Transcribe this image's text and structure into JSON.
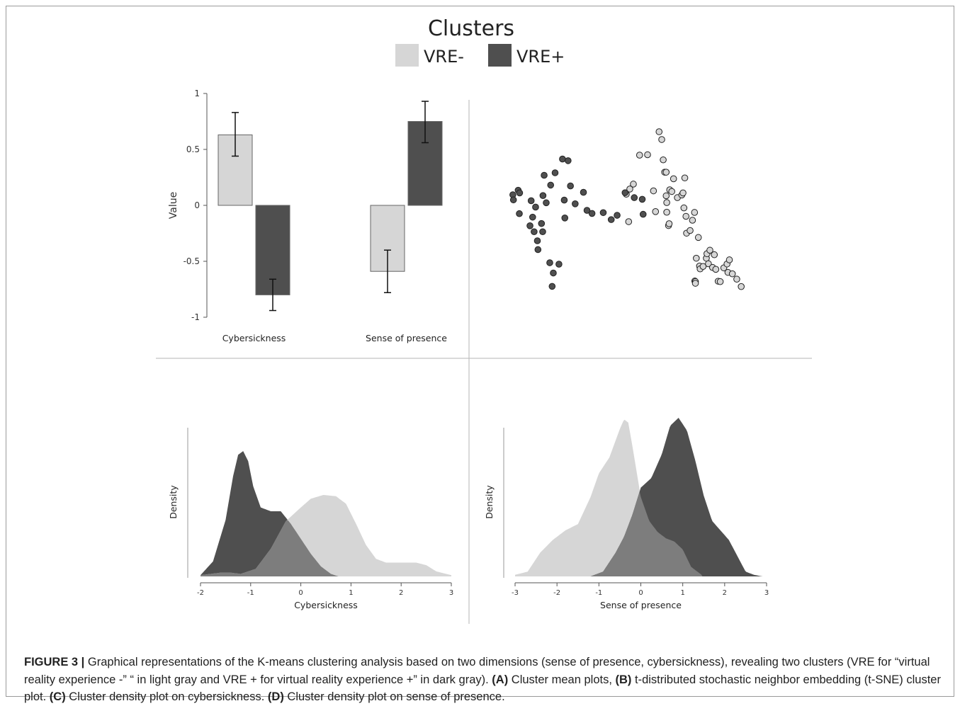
{
  "figure": {
    "legend_title": "Clusters",
    "colors": {
      "vre_minus": "#d6d6d6",
      "vre_plus": "#4f4f4f",
      "overlap": "#7d7d7d",
      "point_stroke": "#222222",
      "axis": "#555555"
    }
  },
  "chart_data": [
    {
      "id": "A",
      "type": "bar",
      "categories": [
        "Cybersickness",
        "Sense of presence"
      ],
      "series": [
        {
          "name": "VRE-",
          "values": [
            0.63,
            -0.59
          ],
          "error_low": [
            0.44,
            -0.78
          ],
          "error_high": [
            0.83,
            -0.4
          ]
        },
        {
          "name": "VRE+",
          "values": [
            -0.8,
            0.75
          ],
          "error_low": [
            -0.94,
            0.56
          ],
          "error_high": [
            -0.66,
            0.93
          ]
        }
      ],
      "ylabel": "Value",
      "ylim": [
        -1,
        1
      ],
      "yticks": [
        1,
        0.5,
        0,
        -0.5,
        -1
      ],
      "ytick_labels": [
        "1",
        "0.5",
        "0",
        "-0.5",
        "-1"
      ],
      "legend_placement": "top-center"
    },
    {
      "id": "B",
      "type": "scatter",
      "axes_visible": false,
      "xlim": [
        0,
        100
      ],
      "ylim": [
        0,
        100
      ],
      "series": [
        {
          "name": "VRE-",
          "points": [
            [
              44.2,
              49.3
            ],
            [
              43.4,
              62.7
            ],
            [
              44.6,
              65.2
            ],
            [
              45.8,
              67.6
            ],
            [
              47.9,
              81.7
            ],
            [
              50.6,
              81.9
            ],
            [
              52.6,
              64.3
            ],
            [
              53.3,
              54.2
            ],
            [
              54.5,
              93.1
            ],
            [
              55.4,
              89.3
            ],
            [
              55.9,
              79.4
            ],
            [
              56.4,
              73.4
            ],
            [
              56.9,
              73.4
            ],
            [
              56.9,
              61.9
            ],
            [
              57.1,
              58.6
            ],
            [
              57.1,
              53.9
            ],
            [
              57.7,
              47.4
            ],
            [
              57.9,
              48.3
            ],
            [
              58.1,
              64.8
            ],
            [
              58.8,
              64.0
            ],
            [
              59.4,
              70.2
            ],
            [
              60.7,
              61.0
            ],
            [
              62.2,
              62.3
            ],
            [
              62.6,
              63.3
            ],
            [
              62.9,
              56.0
            ],
            [
              63.2,
              70.6
            ],
            [
              63.6,
              51.9
            ],
            [
              63.8,
              43.7
            ],
            [
              65.0,
              45.0
            ],
            [
              65.8,
              50.0
            ],
            [
              66.5,
              53.8
            ],
            [
              66.6,
              20.4
            ],
            [
              66.8,
              20.1
            ],
            [
              66.8,
              19.3
            ],
            [
              67.1,
              31.5
            ],
            [
              67.8,
              41.6
            ],
            [
              68.2,
              27.7
            ],
            [
              68.4,
              26.3
            ],
            [
              69.4,
              27.5
            ],
            [
              70.5,
              31.5
            ],
            [
              70.7,
              33.7
            ],
            [
              71.2,
              28.8
            ],
            [
              71.7,
              35.4
            ],
            [
              72.6,
              27.0
            ],
            [
              73.2,
              33.2
            ],
            [
              73.7,
              26.1
            ],
            [
              74.5,
              20.3
            ],
            [
              75.2,
              20.1
            ],
            [
              76.4,
              26.8
            ],
            [
              77.5,
              28.7
            ],
            [
              77.8,
              24.6
            ],
            [
              78.3,
              30.7
            ],
            [
              79.3,
              23.9
            ],
            [
              80.8,
              21.3
            ],
            [
              82.3,
              17.7
            ]
          ]
        },
        {
          "name": "VRE+",
          "points": [
            [
              5.0,
              62.4
            ],
            [
              5.2,
              59.9
            ],
            [
              6.8,
              64.6
            ],
            [
              7.2,
              53.2
            ],
            [
              7.3,
              63.3
            ],
            [
              10.8,
              47.3
            ],
            [
              11.2,
              59.5
            ],
            [
              11.7,
              51.5
            ],
            [
              12.2,
              44.4
            ],
            [
              12.7,
              56.4
            ],
            [
              13.3,
              40.0
            ],
            [
              13.5,
              35.7
            ],
            [
              14.7,
              48.4
            ],
            [
              15.1,
              44.4
            ],
            [
              15.2,
              62.0
            ],
            [
              15.6,
              71.9
            ],
            [
              16.3,
              58.5
            ],
            [
              17.5,
              29.3
            ],
            [
              17.8,
              67.1
            ],
            [
              18.3,
              17.8
            ],
            [
              18.7,
              24.3
            ],
            [
              19.3,
              73.1
            ],
            [
              20.6,
              28.6
            ],
            [
              21.8,
              79.8
            ],
            [
              22.4,
              59.8
            ],
            [
              22.6,
              51.1
            ],
            [
              23.7,
              79.0
            ],
            [
              24.5,
              66.7
            ],
            [
              26.1,
              58.0
            ],
            [
              28.9,
              63.6
            ],
            [
              30.1,
              54.8
            ],
            [
              31.8,
              53.3
            ],
            [
              35.6,
              53.7
            ],
            [
              38.3,
              50.3
            ],
            [
              40.3,
              52.4
            ],
            [
              43.0,
              63.4
            ],
            [
              46.1,
              61.0
            ],
            [
              48.8,
              60.2
            ],
            [
              49.1,
              52.9
            ]
          ]
        }
      ],
      "note_flipped_y": true
    },
    {
      "id": "C",
      "type": "area",
      "xlabel": "Cybersickness",
      "ylabel": "Density",
      "xlim": [
        -2,
        3
      ],
      "xticks": [
        -2,
        -1,
        0,
        1,
        2,
        3
      ],
      "series": [
        {
          "name": "VRE+",
          "x": [
            -2,
            -1.75,
            -1.5,
            -1.35,
            -1.25,
            -1.15,
            -1.05,
            -0.95,
            -0.8,
            -0.6,
            -0.4,
            -0.2,
            0,
            0.2,
            0.4,
            0.6,
            0.75
          ],
          "y": [
            0.01,
            0.12,
            0.45,
            0.8,
            0.97,
            1.0,
            0.92,
            0.72,
            0.55,
            0.52,
            0.52,
            0.42,
            0.3,
            0.18,
            0.08,
            0.02,
            0.0
          ]
        },
        {
          "name": "VRE-",
          "x": [
            -2,
            -1.6,
            -1.4,
            -1.2,
            -0.9,
            -0.6,
            -0.3,
            0,
            0.2,
            0.45,
            0.7,
            0.9,
            1.1,
            1.3,
            1.5,
            1.7,
            2.0,
            2.3,
            2.5,
            2.7,
            3
          ],
          "y": [
            0.01,
            0.03,
            0.03,
            0.02,
            0.06,
            0.22,
            0.44,
            0.55,
            0.62,
            0.65,
            0.64,
            0.58,
            0.42,
            0.25,
            0.14,
            0.11,
            0.11,
            0.11,
            0.09,
            0.04,
            0.01
          ]
        }
      ]
    },
    {
      "id": "D",
      "type": "area",
      "xlabel": "Sense of presence",
      "ylabel": "Density",
      "xlim": [
        -3,
        3
      ],
      "xticks": [
        -3,
        -2,
        -1,
        0,
        1,
        2,
        3
      ],
      "series": [
        {
          "name": "VRE-",
          "x": [
            -3,
            -2.7,
            -2.4,
            -2.1,
            -1.8,
            -1.5,
            -1.2,
            -1.0,
            -0.75,
            -0.5,
            -0.4,
            -0.3,
            -0.2,
            0,
            0.2,
            0.4,
            0.6,
            0.8,
            1.0,
            1.2,
            1.45
          ],
          "y": [
            0.01,
            0.03,
            0.15,
            0.23,
            0.29,
            0.33,
            0.5,
            0.65,
            0.75,
            0.93,
            0.99,
            0.97,
            0.82,
            0.5,
            0.35,
            0.28,
            0.24,
            0.22,
            0.17,
            0.06,
            0.01
          ]
        },
        {
          "name": "VRE+",
          "x": [
            -1.2,
            -0.9,
            -0.6,
            -0.4,
            -0.2,
            0,
            0.25,
            0.5,
            0.7,
            0.9,
            1.1,
            1.3,
            1.5,
            1.7,
            1.9,
            2.1,
            2.3,
            2.5,
            2.7,
            2.9
          ],
          "y": [
            0.0,
            0.03,
            0.15,
            0.25,
            0.39,
            0.56,
            0.62,
            0.77,
            0.95,
            1.0,
            0.92,
            0.73,
            0.51,
            0.35,
            0.29,
            0.23,
            0.13,
            0.03,
            0.01,
            0.0
          ]
        }
      ]
    }
  ],
  "caption": {
    "figure_label": "FIGURE 3 |",
    "intro": " Graphical representations of the K-means clustering analysis based on two dimensions (sense of presence, cybersickness), revealing two clusters (VRE for “virtual reality experience -” “ in light gray and VRE + for virtual reality experience +” in dark gray). ",
    "a_label": "(A)",
    "a_text": " Cluster mean plots, ",
    "b_label": "(B)",
    "b_text": " t-distributed stochastic neighbor embedding (t-SNE) cluster plot. ",
    "c_label": "(C)",
    "c_text": " Cluster density plot on cybersickness. ",
    "d_label": "(D)",
    "d_text": " Cluster density plot on sense of presence."
  }
}
